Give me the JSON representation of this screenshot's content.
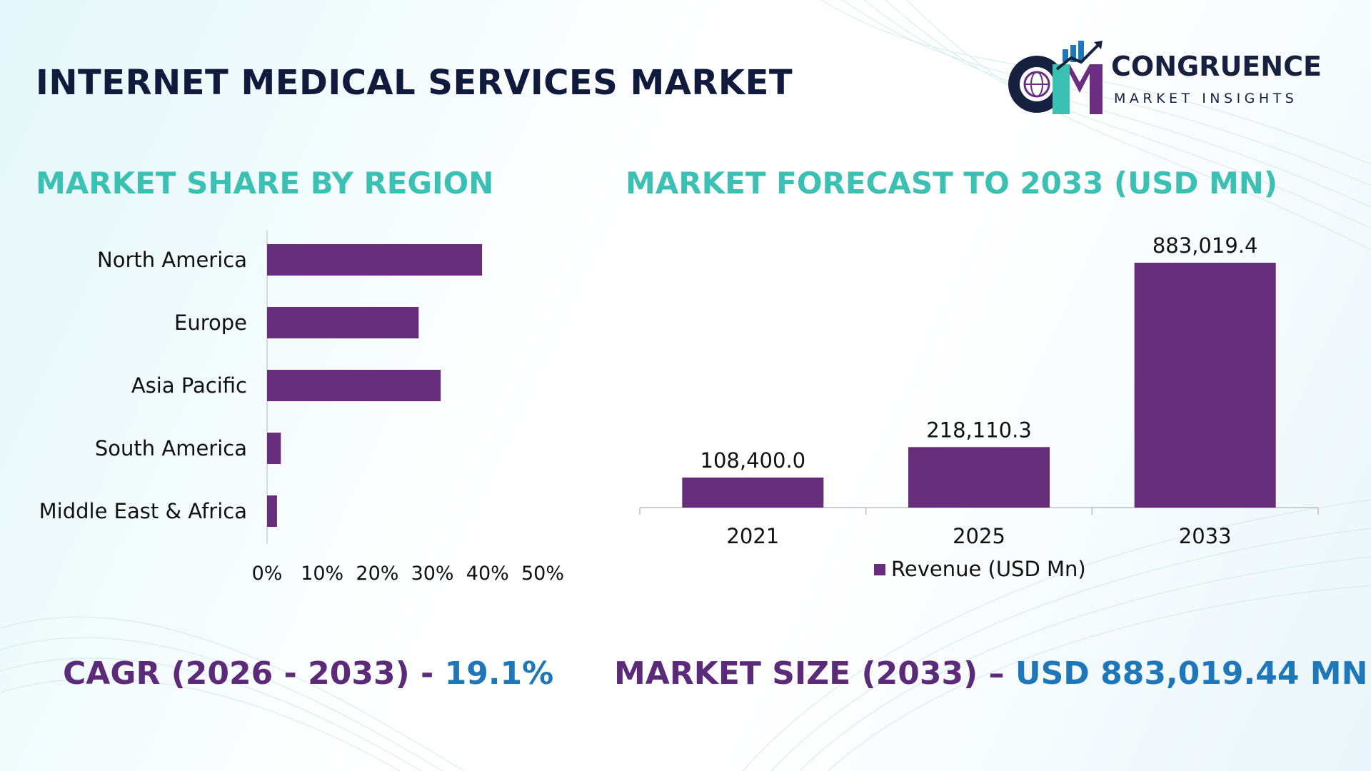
{
  "header": {
    "title": "INTERNET MEDICAL SERVICES MARKET",
    "logo": {
      "monogram": "CM",
      "name": "CONGRUENCE",
      "tagline": "MARKET INSIGHTS",
      "colors": {
        "navy": "#15213f",
        "teal": "#3bc0b4",
        "purple": "#6a2d82",
        "blue": "#1d77b8"
      }
    }
  },
  "sections": {
    "region_title": "MARKET SHARE BY REGION",
    "forecast_title": "MARKET FORECAST TO 2033 (USD MN)"
  },
  "colors": {
    "bar": "#652d7a",
    "title_teal": "#3bc0b4",
    "stat_label": "#5b2a78",
    "stat_value": "#1d77b8",
    "heading": "#101a3c"
  },
  "stats": {
    "cagr_label": "CAGR (2026 - 2033) - ",
    "cagr_value": "19.1%",
    "size_label": "MARKET SIZE (2033) – ",
    "size_value": "USD 883,019.44 MN"
  },
  "chart_data": [
    {
      "type": "bar",
      "orientation": "horizontal",
      "categories": [
        "North America",
        "Europe",
        "Asia Pacific",
        "South America",
        "Middle East & Africa"
      ],
      "values": [
        39,
        27.5,
        31.5,
        2.5,
        1.8
      ],
      "unit": "%",
      "xlim": [
        0,
        50
      ],
      "xticks": [
        "0%",
        "10%",
        "20%",
        "30%",
        "40%",
        "50%"
      ],
      "grid": false,
      "legend": false
    },
    {
      "type": "bar",
      "orientation": "vertical",
      "categories": [
        "2021",
        "2025",
        "2033"
      ],
      "series": [
        {
          "name": "Revenue (USD Mn)",
          "values": [
            108400.0,
            218110.3,
            883019.4
          ]
        }
      ],
      "data_labels": [
        "108,400.0",
        "218,110.3",
        "883,019.4"
      ],
      "ylim": [
        0,
        883019.4
      ],
      "legend": "bottom-center",
      "grid": false
    }
  ]
}
